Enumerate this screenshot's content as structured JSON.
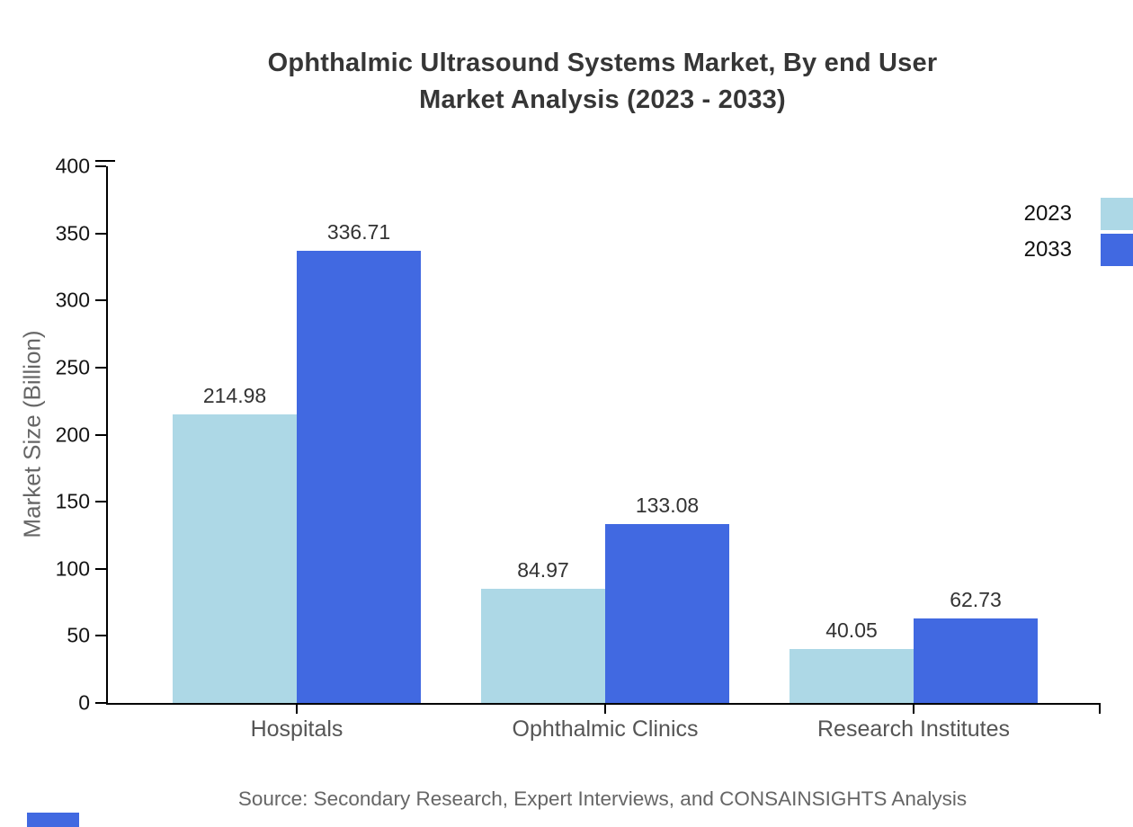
{
  "title": {
    "line1": "Ophthalmic Ultrasound Systems Market, By end User",
    "line2": "Market Analysis (2023 - 2033)"
  },
  "chart_data": {
    "type": "bar",
    "categories": [
      "Hospitals",
      "Ophthalmic Clinics",
      "Research Institutes"
    ],
    "series": [
      {
        "name": "2023",
        "color": "#ADD8E6",
        "values": [
          214.98,
          84.97,
          40.05
        ]
      },
      {
        "name": "2033",
        "color": "#4169E1",
        "values": [
          336.71,
          133.08,
          62.73
        ]
      }
    ],
    "title": "Ophthalmic Ultrasound Systems Market, By end User Market Analysis (2023 - 2033)",
    "xlabel": "",
    "ylabel": "Market Size (Billion)",
    "ylim": [
      0,
      400
    ],
    "ytick_step": 50,
    "grid": false,
    "legend_position": "top-right",
    "value_labels_shown": true
  },
  "footer": {
    "source": "Source: Secondary Research, Expert Interviews, and CONSAINSIGHTS Analysis"
  },
  "colors": {
    "series_2023": "#ADD8E6",
    "series_2033": "#4169E1",
    "axis": "#000000",
    "watermark_block": "#4169E1"
  }
}
